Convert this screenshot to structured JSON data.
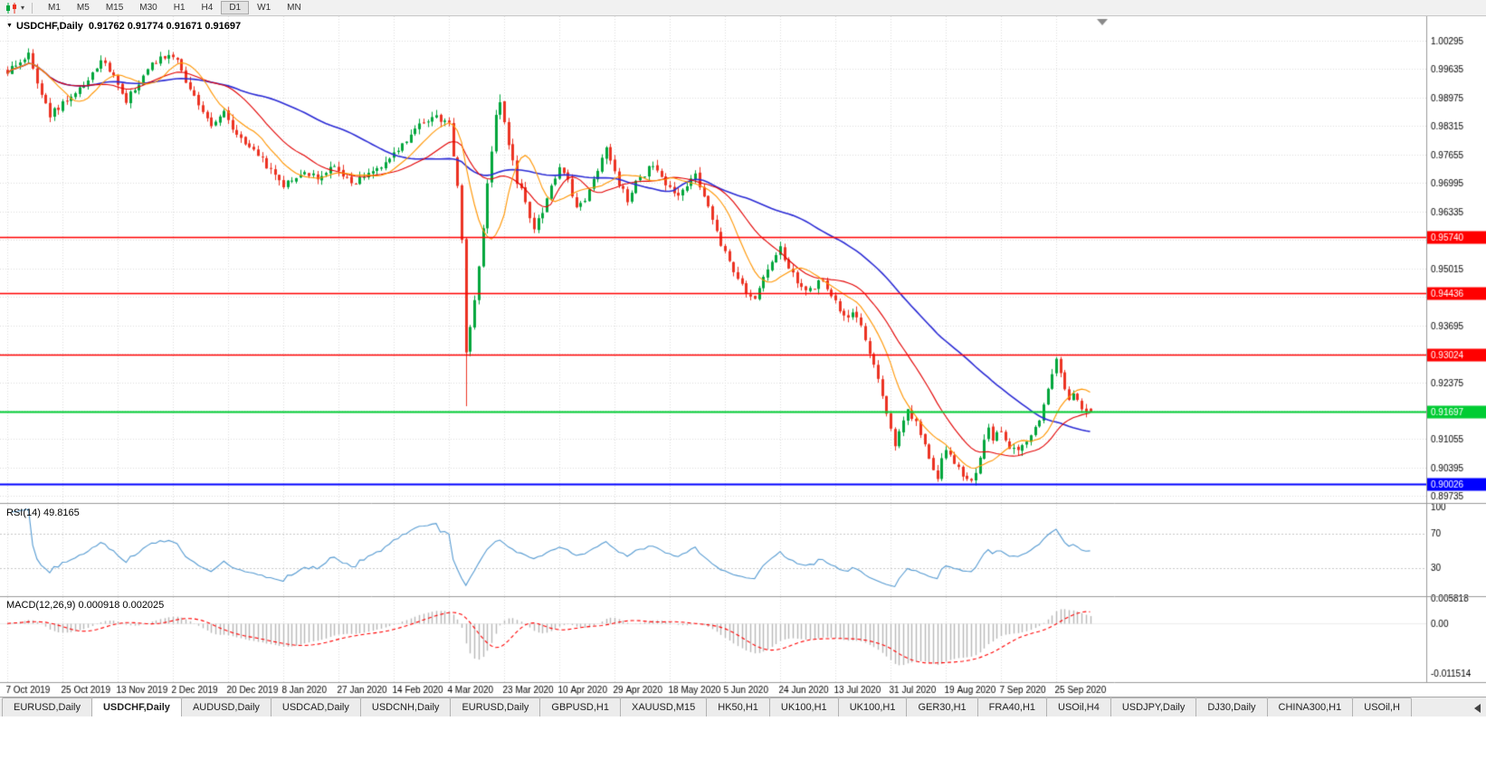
{
  "colors": {
    "background": "#ffffff",
    "bull_candle": "#00A63C",
    "bear_candle": "#EC3323",
    "ma_fast_orange": "#FF9500",
    "ma_mid_red": "#E30000",
    "ma_slow_blue": "#2B2BD5",
    "rsi_line": "#569BD2",
    "rsi_level_line": "#C8C8C8",
    "macd_histogram": "#B8B8B8",
    "macd_signal": "#FF0000",
    "grid": "#DCDCDC",
    "panel_divider": "#9A9A9A",
    "axis_text": "#000000"
  },
  "toolbar": {
    "timeframes": [
      "M1",
      "M5",
      "M15",
      "M30",
      "H1",
      "H4",
      "D1",
      "W1",
      "MN"
    ],
    "active_timeframe": "D1"
  },
  "title": {
    "symbol": "USDCHF,Daily",
    "ohlc": "0.91762 0.91774 0.91671 0.91697"
  },
  "panes": {
    "rsi_label": "RSI(14) 49.8165",
    "macd_label": "MACD(12,26,9) 0.000918 0.002025"
  },
  "chart_data": {
    "type": "candlestick",
    "symbol": "USDCHF",
    "timeframe": "Daily",
    "current_ohlc": {
      "open": 0.91762,
      "high": 0.91774,
      "low": 0.91671,
      "close": 0.91697
    },
    "price_axis_ticks": [
      1.00295,
      0.99635,
      0.98975,
      0.98315,
      0.97655,
      0.96995,
      0.96335,
      0.95675,
      0.95015,
      0.94355,
      0.93695,
      0.93035,
      0.92375,
      0.91715,
      0.91055,
      0.90395,
      0.89735
    ],
    "x_tick_labels": [
      "7 Oct 2019",
      "25 Oct 2019",
      "13 Nov 2019",
      "2 Dec 2019",
      "20 Dec 2019",
      "8 Jan 2020",
      "27 Jan 2020",
      "14 Feb 2020",
      "4 Mar 2020",
      "23 Mar 2020",
      "10 Apr 2020",
      "29 Apr 2020",
      "18 May 2020",
      "5 Jun 2020",
      "24 Jun 2020",
      "13 Jul 2020",
      "31 Jul 2020",
      "19 Aug 2020",
      "7 Sep 2020",
      "25 Sep 2020"
    ],
    "candles_per_tick": 13,
    "num_candles": 256,
    "horizontal_lines": [
      {
        "price": 0.9574,
        "label": "0.95740",
        "color": "#FF0000",
        "width": 1.6,
        "role": "resistance"
      },
      {
        "price": 0.94436,
        "label": "0.94436",
        "color": "#FF0000",
        "width": 1.6,
        "role": "resistance"
      },
      {
        "price": 0.93024,
        "label": "0.93024",
        "color": "#FF0000",
        "width": 1.6,
        "role": "resistance"
      },
      {
        "price": 0.91697,
        "label": "0.91697",
        "color": "#00CC33",
        "width": 2,
        "role": "current-price"
      },
      {
        "price": 0.90026,
        "label": "0.90026",
        "color": "#0000FF",
        "width": 2,
        "role": "support"
      }
    ],
    "close_waypoints": [
      [
        0,
        0.996
      ],
      [
        3,
        0.9985
      ],
      [
        5,
        0.9995
      ],
      [
        8,
        0.99
      ],
      [
        10,
        0.9857
      ],
      [
        14,
        0.989
      ],
      [
        19,
        0.9935
      ],
      [
        22,
        0.9983
      ],
      [
        25,
        0.995
      ],
      [
        28,
        0.9892
      ],
      [
        31,
        0.993
      ],
      [
        35,
        0.9985
      ],
      [
        38,
        0.9998
      ],
      [
        40,
        0.999
      ],
      [
        42,
        0.9925
      ],
      [
        45,
        0.988
      ],
      [
        48,
        0.9835
      ],
      [
        51,
        0.986
      ],
      [
        55,
        0.98
      ],
      [
        58,
        0.9775
      ],
      [
        62,
        0.973
      ],
      [
        65,
        0.9697
      ],
      [
        69,
        0.9725
      ],
      [
        73,
        0.9713
      ],
      [
        77,
        0.9745
      ],
      [
        81,
        0.9695
      ],
      [
        86,
        0.973
      ],
      [
        90,
        0.9755
      ],
      [
        94,
        0.98
      ],
      [
        98,
        0.9845
      ],
      [
        101,
        0.9852
      ],
      [
        104,
        0.9838
      ],
      [
        106,
        0.97
      ],
      [
        107,
        0.957
      ],
      [
        108,
        0.931
      ],
      [
        109,
        0.936
      ],
      [
        111,
        0.95
      ],
      [
        113,
        0.97
      ],
      [
        115,
        0.985
      ],
      [
        116,
        0.9885
      ],
      [
        118,
        0.979
      ],
      [
        120,
        0.97
      ],
      [
        122,
        0.966
      ],
      [
        124,
        0.959
      ],
      [
        126,
        0.963
      ],
      [
        128,
        0.969
      ],
      [
        130,
        0.973
      ],
      [
        132,
        0.97
      ],
      [
        134,
        0.9645
      ],
      [
        136,
        0.966
      ],
      [
        138,
        0.9705
      ],
      [
        141,
        0.9778
      ],
      [
        143,
        0.972
      ],
      [
        146,
        0.966
      ],
      [
        148,
        0.97
      ],
      [
        152,
        0.9745
      ],
      [
        154,
        0.971
      ],
      [
        158,
        0.9675
      ],
      [
        162,
        0.9715
      ],
      [
        164,
        0.967
      ],
      [
        166,
        0.962
      ],
      [
        168,
        0.956
      ],
      [
        170,
        0.952
      ],
      [
        172,
        0.948
      ],
      [
        174,
        0.944
      ],
      [
        176,
        0.943
      ],
      [
        178,
        0.9475
      ],
      [
        180,
        0.952
      ],
      [
        182,
        0.9545
      ],
      [
        184,
        0.9505
      ],
      [
        186,
        0.947
      ],
      [
        188,
        0.9445
      ],
      [
        190,
        0.946
      ],
      [
        192,
        0.9475
      ],
      [
        195,
        0.942
      ],
      [
        197,
        0.939
      ],
      [
        199,
        0.94
      ],
      [
        201,
        0.937
      ],
      [
        203,
        0.931
      ],
      [
        205,
        0.925
      ],
      [
        207,
        0.917
      ],
      [
        209,
        0.909
      ],
      [
        210,
        0.912
      ],
      [
        212,
        0.9175
      ],
      [
        214,
        0.914
      ],
      [
        216,
        0.909
      ],
      [
        218,
        0.904
      ],
      [
        219,
        0.9015
      ],
      [
        220,
        0.906
      ],
      [
        221,
        0.9085
      ],
      [
        223,
        0.905
      ],
      [
        225,
        0.902
      ],
      [
        227,
        0.9005
      ],
      [
        229,
        0.906
      ],
      [
        231,
        0.914
      ],
      [
        232,
        0.911
      ],
      [
        234,
        0.9125
      ],
      [
        236,
        0.9085
      ],
      [
        238,
        0.9075
      ],
      [
        240,
        0.9095
      ],
      [
        242,
        0.913
      ],
      [
        244,
        0.918
      ],
      [
        246,
        0.9255
      ],
      [
        247,
        0.9285
      ],
      [
        248,
        0.926
      ],
      [
        249,
        0.9225
      ],
      [
        250,
        0.92
      ],
      [
        251,
        0.9215
      ],
      [
        252,
        0.919
      ],
      [
        253,
        0.9175
      ],
      [
        254,
        0.9165
      ],
      [
        255,
        0.917
      ]
    ],
    "forced_candles": {
      "38": {
        "h": 1.0008
      },
      "108": {
        "l": 0.9182
      },
      "116": {
        "h": 0.9905
      },
      "247": {
        "h": 0.9296
      },
      "255": {
        "o": 0.91762,
        "h": 0.91774,
        "l": 0.91671,
        "c": 0.91697
      }
    },
    "moving_averages": [
      {
        "period": 10,
        "color_key": "ma_fast_orange"
      },
      {
        "period": 21,
        "color_key": "ma_mid_red"
      },
      {
        "period": 50,
        "color_key": "ma_slow_blue"
      }
    ],
    "rsi": {
      "period": 14,
      "current": 49.8165,
      "axis_levels": [
        100,
        70,
        30,
        0
      ],
      "dashed_levels": [
        70,
        30
      ]
    },
    "macd": {
      "fast": 12,
      "slow": 26,
      "signal": 9,
      "current_main": 0.000918,
      "current_signal": 0.002025,
      "axis_labels": [
        "0.005818",
        "0.00",
        "-0.011514"
      ],
      "axis_top_value": 0.005818,
      "axis_bottom_value": -0.011514
    }
  },
  "tabs": {
    "active_index": 1,
    "items": [
      "EURUSD,Daily",
      "USDCHF,Daily",
      "AUDUSD,Daily",
      "USDCAD,Daily",
      "USDCNH,Daily",
      "EURUSD,Daily",
      "GBPUSD,H1",
      "XAUUSD,M15",
      "HK50,H1",
      "UK100,H1",
      "UK100,H1",
      "GER30,H1",
      "FRA40,H1",
      "USOil,H4",
      "USDJPY,Daily",
      "DJ30,Daily",
      "CHINA300,H1",
      "USOil,H"
    ]
  }
}
